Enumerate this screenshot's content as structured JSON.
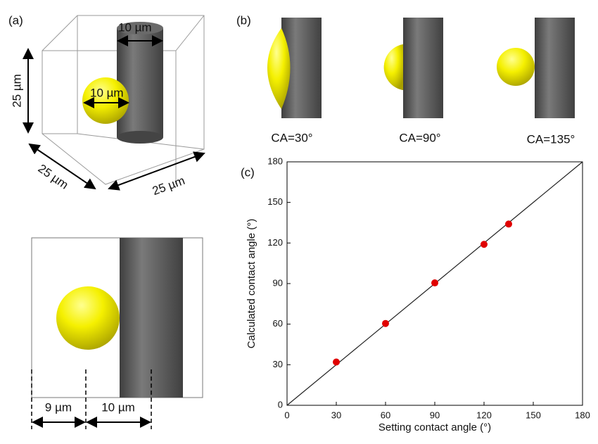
{
  "panel_labels": {
    "a": "(a)",
    "b": "(b)",
    "c": "(c)"
  },
  "panel_a": {
    "cylinder_diameter": "10 µm",
    "sphere_diameter": "10 µm",
    "height": "25 µm",
    "depth": "25 µm",
    "width": "25 µm"
  },
  "panel_a_side": {
    "gap": "9 µm",
    "diameter": "10 µm"
  },
  "panel_b": {
    "captions": [
      "CA=30°",
      "CA=90°",
      "CA=135°"
    ]
  },
  "chart_data": {
    "type": "scatter",
    "xlabel": "Setting contact angle (°)",
    "ylabel": "Calculated contact angle (°)",
    "x": [
      30,
      60,
      90,
      120,
      135
    ],
    "values": [
      32,
      60.5,
      90.5,
      119,
      134
    ],
    "color": "#e00000",
    "xlim": [
      0,
      180
    ],
    "ylim": [
      0,
      180
    ],
    "xticks": [
      0,
      30,
      60,
      90,
      120,
      150,
      180
    ],
    "yticks": [
      0,
      30,
      60,
      90,
      120,
      150,
      180
    ],
    "diagonal": true
  }
}
